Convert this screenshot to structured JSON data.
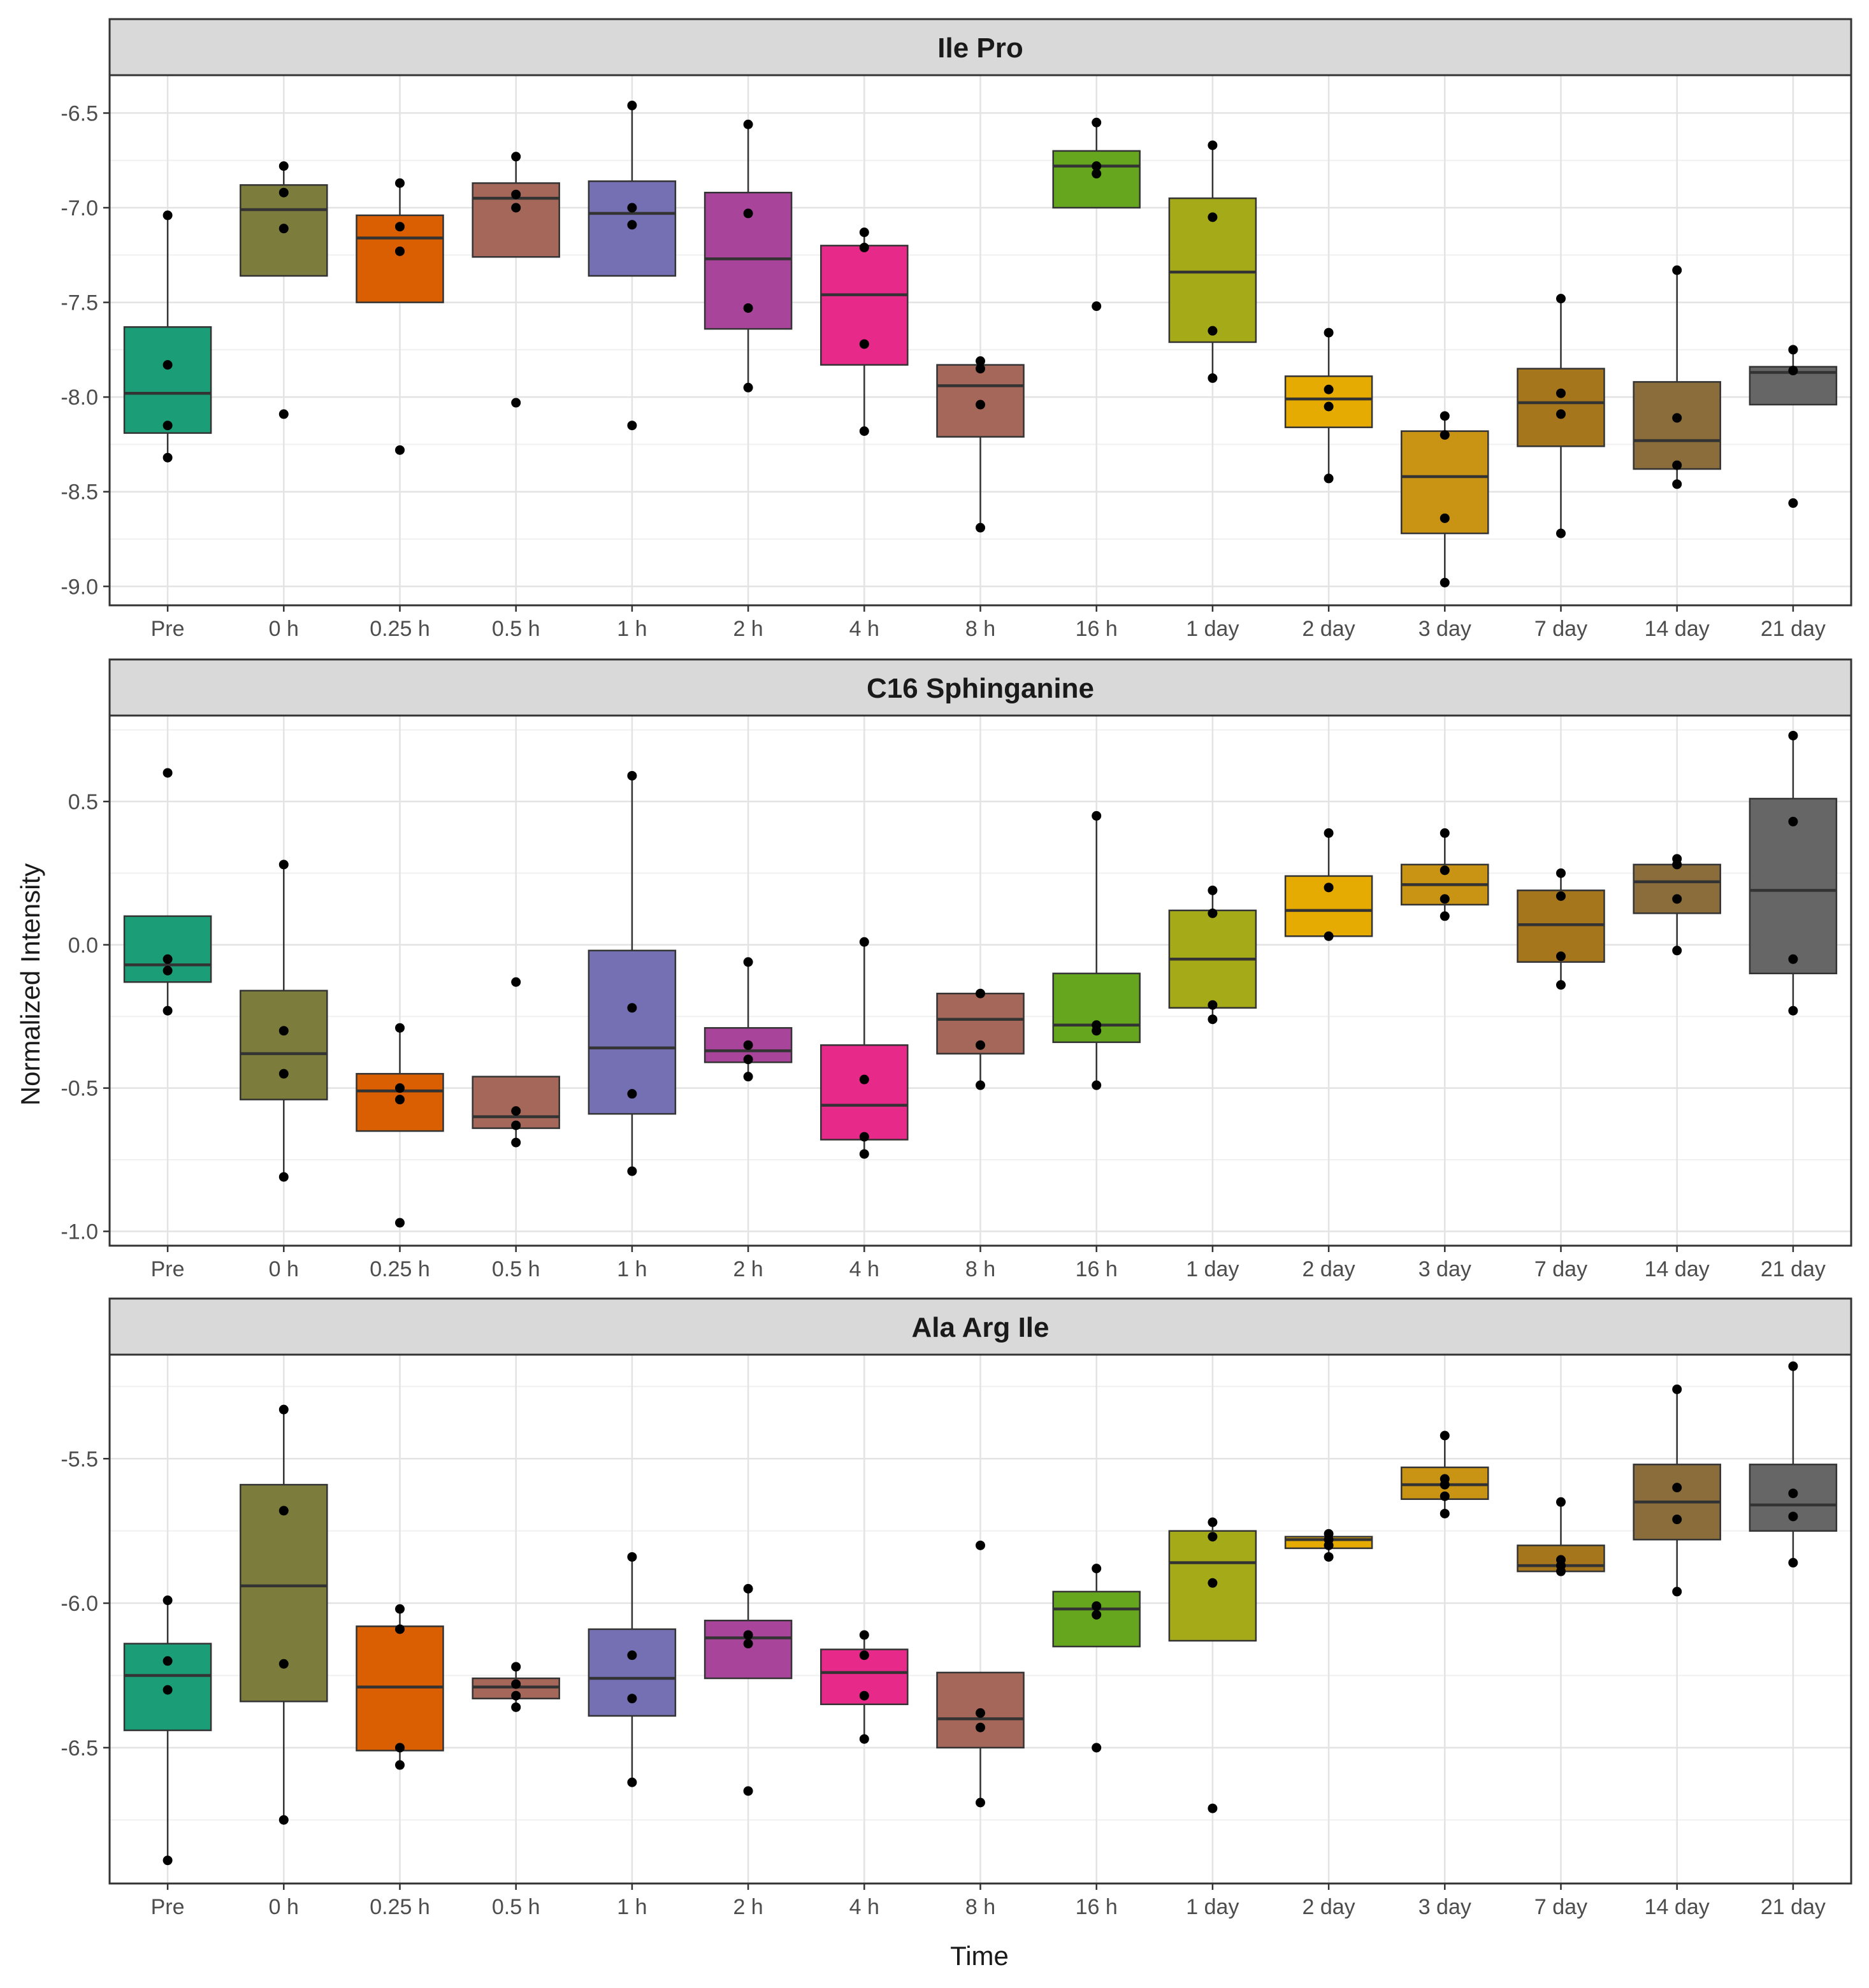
{
  "chart_data": {
    "type": "boxplot",
    "xlabel": "Time",
    "ylabel": "Normalized Intensity",
    "categories": [
      "Pre",
      "0 h",
      "0.25 h",
      "0.5 h",
      "1 h",
      "2 h",
      "4 h",
      "8 h",
      "16 h",
      "1 day",
      "2 day",
      "3 day",
      "7 day",
      "14 day",
      "21 day"
    ],
    "colors": [
      "#1b9e77",
      "#7c7c3c",
      "#d95f02",
      "#a5675a",
      "#7570b3",
      "#a9449b",
      "#e7298a",
      "#a5675a",
      "#66a61e",
      "#a4aa18",
      "#e6ab02",
      "#c99314",
      "#a6761d",
      "#8a6d3b",
      "#666666"
    ],
    "panels": [
      {
        "title": "Ile Pro",
        "ylim": [
          -9.1,
          -6.3
        ],
        "yticks": [
          -9.0,
          -8.5,
          -8.0,
          -7.5,
          -7.0,
          -6.5
        ],
        "ytick_labels": [
          "-9.0",
          "-8.5",
          "-8.0",
          "-7.5",
          "-7.0",
          "-6.5"
        ],
        "boxes": [
          {
            "q1": -8.19,
            "median": -7.98,
            "q3": -7.63,
            "low": -8.32,
            "high": -7.04,
            "points": [
              -7.04,
              -7.83,
              -8.15,
              -8.32
            ]
          },
          {
            "q1": -7.36,
            "median": -7.01,
            "q3": -6.88,
            "low": -7.36,
            "high": -6.78,
            "points": [
              -6.78,
              -6.92,
              -7.11,
              -8.09
            ]
          },
          {
            "q1": -7.5,
            "median": -7.16,
            "q3": -7.04,
            "low": -7.5,
            "high": -6.87,
            "points": [
              -6.87,
              -7.1,
              -7.23,
              -8.28
            ]
          },
          {
            "q1": -7.26,
            "median": -6.95,
            "q3": -6.87,
            "low": -7.26,
            "high": -6.73,
            "points": [
              -6.73,
              -6.93,
              -7.0,
              -8.03
            ]
          },
          {
            "q1": -7.36,
            "median": -7.03,
            "q3": -6.86,
            "low": -7.36,
            "high": -6.46,
            "points": [
              -6.46,
              -7.0,
              -7.09,
              -8.15
            ]
          },
          {
            "q1": -7.64,
            "median": -7.27,
            "q3": -6.92,
            "low": -7.95,
            "high": -6.56,
            "points": [
              -6.56,
              -7.03,
              -7.53,
              -7.95
            ]
          },
          {
            "q1": -7.83,
            "median": -7.46,
            "q3": -7.2,
            "low": -8.18,
            "high": -7.13,
            "points": [
              -7.13,
              -7.21,
              -7.72,
              -8.18
            ]
          },
          {
            "q1": -8.21,
            "median": -7.94,
            "q3": -7.83,
            "low": -8.69,
            "high": -7.81,
            "points": [
              -7.81,
              -7.85,
              -8.04,
              -8.69
            ]
          },
          {
            "q1": -7.0,
            "median": -6.78,
            "q3": -6.7,
            "low": -7.0,
            "high": -6.55,
            "points": [
              -6.55,
              -6.78,
              -6.82,
              -7.52
            ]
          },
          {
            "q1": -7.71,
            "median": -7.34,
            "q3": -6.95,
            "low": -7.9,
            "high": -6.67,
            "points": [
              -6.67,
              -7.05,
              -7.65,
              -7.9
            ]
          },
          {
            "q1": -8.16,
            "median": -8.01,
            "q3": -7.89,
            "low": -8.43,
            "high": -7.66,
            "points": [
              -7.66,
              -7.96,
              -8.05,
              -8.43
            ]
          },
          {
            "q1": -8.72,
            "median": -8.42,
            "q3": -8.18,
            "low": -8.98,
            "high": -8.1,
            "points": [
              -8.1,
              -8.2,
              -8.64,
              -8.98
            ]
          },
          {
            "q1": -8.26,
            "median": -8.03,
            "q3": -7.85,
            "low": -8.72,
            "high": -7.48,
            "points": [
              -7.48,
              -7.98,
              -8.09,
              -8.72
            ]
          },
          {
            "q1": -8.38,
            "median": -8.23,
            "q3": -7.92,
            "low": -8.46,
            "high": -7.33,
            "points": [
              -7.33,
              -8.11,
              -8.36,
              -8.46
            ]
          },
          {
            "q1": -8.04,
            "median": -7.87,
            "q3": -7.84,
            "low": -8.04,
            "high": -7.75,
            "points": [
              -7.75,
              -7.86,
              -8.56
            ]
          }
        ]
      },
      {
        "title": "C16 Sphinganine",
        "ylim": [
          -1.05,
          0.8
        ],
        "yticks": [
          -1.0,
          -0.5,
          0.0,
          0.5
        ],
        "ytick_labels": [
          "-1.0",
          "-0.5",
          "0.0",
          "0.5"
        ],
        "boxes": [
          {
            "q1": -0.13,
            "median": -0.07,
            "q3": 0.1,
            "low": -0.23,
            "high": 0.1,
            "points": [
              0.6,
              -0.05,
              -0.09,
              -0.23
            ]
          },
          {
            "q1": -0.54,
            "median": -0.38,
            "q3": -0.16,
            "low": -0.81,
            "high": 0.28,
            "points": [
              0.28,
              -0.3,
              -0.45,
              -0.81
            ]
          },
          {
            "q1": -0.65,
            "median": -0.51,
            "q3": -0.45,
            "low": -0.65,
            "high": -0.29,
            "points": [
              -0.29,
              -0.5,
              -0.54,
              -0.97
            ]
          },
          {
            "q1": -0.64,
            "median": -0.6,
            "q3": -0.46,
            "low": -0.69,
            "high": -0.46,
            "points": [
              -0.13,
              -0.58,
              -0.63,
              -0.69
            ]
          },
          {
            "q1": -0.59,
            "median": -0.36,
            "q3": -0.02,
            "low": -0.79,
            "high": 0.59,
            "points": [
              0.59,
              -0.22,
              -0.52,
              -0.79
            ]
          },
          {
            "q1": -0.41,
            "median": -0.37,
            "q3": -0.29,
            "low": -0.46,
            "high": -0.06,
            "points": [
              -0.06,
              -0.35,
              -0.4,
              -0.46
            ]
          },
          {
            "q1": -0.68,
            "median": -0.56,
            "q3": -0.35,
            "low": -0.73,
            "high": 0.01,
            "points": [
              0.01,
              -0.47,
              -0.67,
              -0.73
            ]
          },
          {
            "q1": -0.38,
            "median": -0.26,
            "q3": -0.17,
            "low": -0.49,
            "high": -0.17,
            "points": [
              -0.17,
              -0.35,
              -0.49
            ]
          },
          {
            "q1": -0.34,
            "median": -0.28,
            "q3": -0.1,
            "low": -0.49,
            "high": 0.45,
            "points": [
              0.45,
              -0.28,
              -0.3,
              -0.49
            ]
          },
          {
            "q1": -0.22,
            "median": -0.05,
            "q3": 0.12,
            "low": -0.26,
            "high": 0.19,
            "points": [
              0.19,
              0.11,
              -0.21,
              -0.26
            ]
          },
          {
            "q1": 0.03,
            "median": 0.12,
            "q3": 0.24,
            "low": 0.02,
            "high": 0.39,
            "points": [
              0.39,
              0.2,
              0.03
            ]
          },
          {
            "q1": 0.14,
            "median": 0.21,
            "q3": 0.28,
            "low": 0.1,
            "high": 0.39,
            "points": [
              0.39,
              0.26,
              0.16,
              0.1
            ]
          },
          {
            "q1": -0.06,
            "median": 0.07,
            "q3": 0.19,
            "low": -0.14,
            "high": 0.25,
            "points": [
              0.25,
              0.17,
              -0.04,
              -0.14
            ]
          },
          {
            "q1": 0.11,
            "median": 0.22,
            "q3": 0.28,
            "low": -0.02,
            "high": 0.3,
            "points": [
              0.3,
              0.28,
              0.16,
              -0.02
            ]
          },
          {
            "q1": -0.1,
            "median": 0.19,
            "q3": 0.51,
            "low": -0.23,
            "high": 0.73,
            "points": [
              0.73,
              0.43,
              -0.05,
              -0.23
            ]
          }
        ]
      },
      {
        "title": "Ala Arg Ile",
        "ylim": [
          -6.97,
          -5.14
        ],
        "yticks": [
          -6.5,
          -6.0,
          -5.5
        ],
        "ytick_labels": [
          "-6.5",
          "-6.0",
          "-5.5"
        ],
        "boxes": [
          {
            "q1": -6.44,
            "median": -6.25,
            "q3": -6.14,
            "low": -6.89,
            "high": -5.99,
            "points": [
              -5.99,
              -6.2,
              -6.3,
              -6.89
            ]
          },
          {
            "q1": -6.34,
            "median": -5.94,
            "q3": -5.59,
            "low": -6.75,
            "high": -5.33,
            "points": [
              -5.33,
              -5.68,
              -6.21,
              -6.75
            ]
          },
          {
            "q1": -6.51,
            "median": -6.29,
            "q3": -6.08,
            "low": -6.56,
            "high": -6.02,
            "points": [
              -6.02,
              -6.09,
              -6.5,
              -6.56
            ]
          },
          {
            "q1": -6.33,
            "median": -6.29,
            "q3": -6.26,
            "low": -6.36,
            "high": -6.22,
            "points": [
              -6.22,
              -6.28,
              -6.32,
              -6.36
            ]
          },
          {
            "q1": -6.39,
            "median": -6.26,
            "q3": -6.09,
            "low": -6.62,
            "high": -5.84,
            "points": [
              -5.84,
              -6.18,
              -6.33,
              -6.62
            ]
          },
          {
            "q1": -6.26,
            "median": -6.12,
            "q3": -6.06,
            "low": -6.26,
            "high": -5.95,
            "points": [
              -5.95,
              -6.11,
              -6.14,
              -6.65
            ]
          },
          {
            "q1": -6.35,
            "median": -6.24,
            "q3": -6.16,
            "low": -6.47,
            "high": -6.11,
            "points": [
              -6.11,
              -6.18,
              -6.32,
              -6.47
            ]
          },
          {
            "q1": -6.5,
            "median": -6.4,
            "q3": -6.24,
            "low": -6.69,
            "high": -6.24,
            "points": [
              -5.8,
              -6.38,
              -6.43,
              -6.69
            ]
          },
          {
            "q1": -6.15,
            "median": -6.02,
            "q3": -5.96,
            "low": -6.15,
            "high": -5.88,
            "points": [
              -5.88,
              -6.01,
              -6.04,
              -6.5
            ]
          },
          {
            "q1": -6.13,
            "median": -5.86,
            "q3": -5.75,
            "low": -6.13,
            "high": -5.72,
            "points": [
              -5.72,
              -5.77,
              -5.93,
              -6.71
            ]
          },
          {
            "q1": -5.81,
            "median": -5.78,
            "q3": -5.77,
            "low": -5.84,
            "high": -5.76,
            "points": [
              -5.76,
              -5.78,
              -5.8,
              -5.84
            ]
          },
          {
            "q1": -5.64,
            "median": -5.59,
            "q3": -5.53,
            "low": -5.69,
            "high": -5.42,
            "points": [
              -5.42,
              -5.57,
              -5.59,
              -5.63,
              -5.69
            ]
          },
          {
            "q1": -5.89,
            "median": -5.87,
            "q3": -5.8,
            "low": -5.89,
            "high": -5.65,
            "points": [
              -5.65,
              -5.85,
              -5.87,
              -5.89
            ]
          },
          {
            "q1": -5.78,
            "median": -5.65,
            "q3": -5.52,
            "low": -5.96,
            "high": -5.26,
            "points": [
              -5.26,
              -5.6,
              -5.71,
              -5.96
            ]
          },
          {
            "q1": -5.75,
            "median": -5.66,
            "q3": -5.52,
            "low": -5.86,
            "high": -5.18,
            "points": [
              -5.18,
              -5.62,
              -5.7,
              -5.86
            ]
          }
        ]
      }
    ]
  }
}
